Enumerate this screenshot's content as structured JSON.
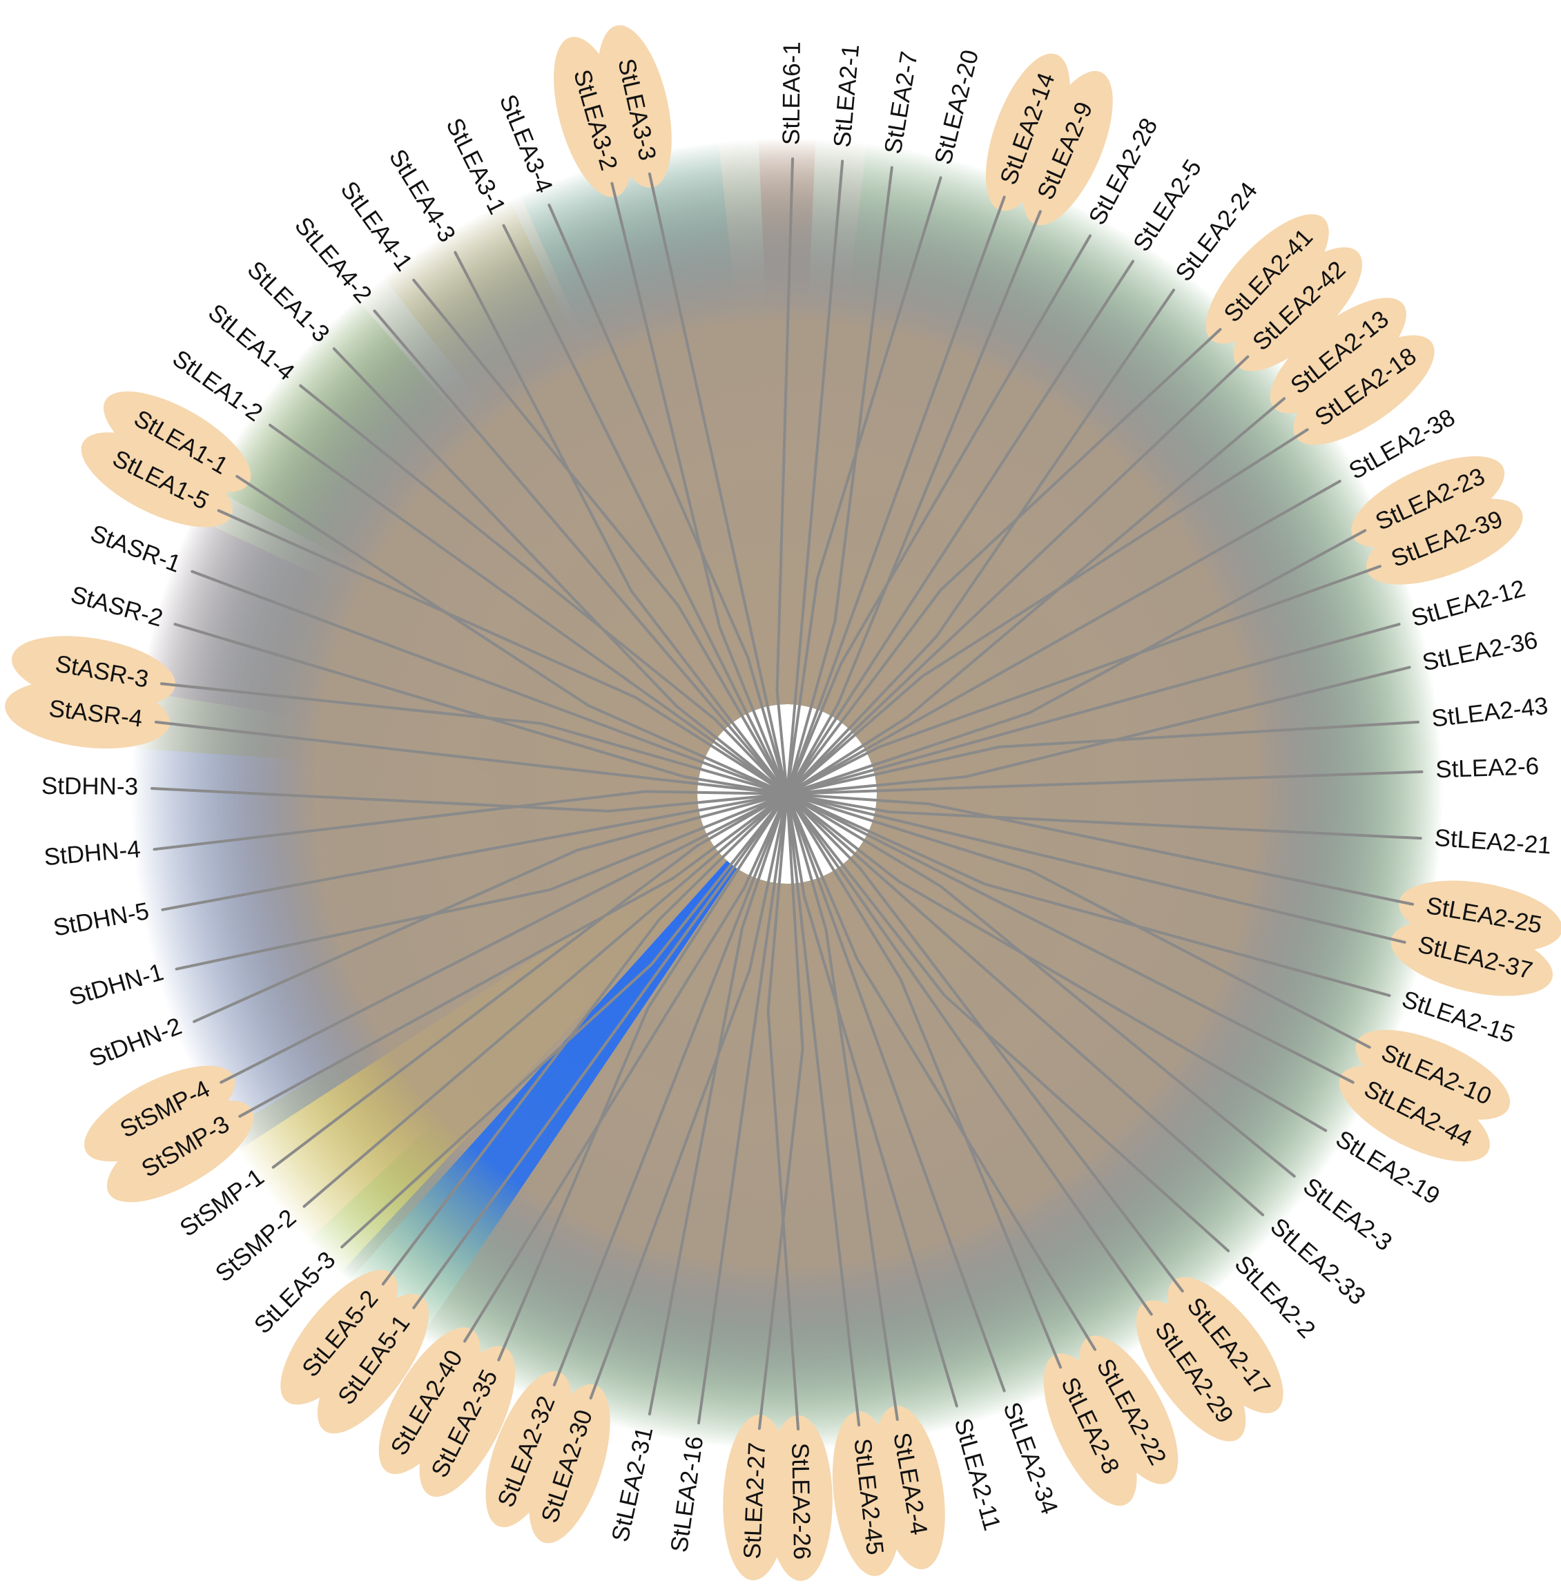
{
  "palette": {
    "branch": "#8a8a8a",
    "highlight": "#f6d7ae",
    "label": "#111111",
    "background": "#ffffff"
  },
  "groups": [
    {
      "id": "LEA2-a",
      "color": "#76f2b0",
      "from_deg": -83,
      "to_deg": 4
    },
    {
      "id": "LEA2-b",
      "color": "#76f2b0",
      "from_deg": 4,
      "to_deg": 137
    },
    {
      "id": "LEA6",
      "color": "#d81f2a",
      "from_deg": -92.5,
      "to_deg": -87.5
    },
    {
      "id": "LEA3",
      "color": "#34d3f4",
      "from_deg": -114,
      "to_deg": -96
    },
    {
      "id": "LEA4",
      "color": "#f6b53a",
      "from_deg": -128,
      "to_deg": -115
    },
    {
      "id": "LEA1",
      "color": "#4bbb14",
      "from_deg": -152,
      "to_deg": -131
    },
    {
      "id": "ASR",
      "color": "#b866f2",
      "from_deg": -171,
      "to_deg": -155
    },
    {
      "id": "DHN",
      "color": "#f4ea1a",
      "from_deg": -176,
      "to_deg": 149
    },
    {
      "id": "SMP",
      "color": "#2b6ef0",
      "from_deg": 147,
      "to_deg": 133
    },
    {
      "id": "LEA5",
      "color": "#b09d84",
      "from_deg": 132,
      "to_deg": 124
    }
  ],
  "leaves": [
    {
      "label": "StLEA6-1",
      "angle": -89.5,
      "highlight": false
    },
    {
      "label": "StLEA2-1",
      "angle": -85,
      "highlight": false
    },
    {
      "label": "StLEA2-7",
      "angle": -80.5,
      "highlight": false
    },
    {
      "label": "StLEA2-20",
      "angle": -76,
      "highlight": false
    },
    {
      "label": "StLEA2-14",
      "angle": -70,
      "highlight": true
    },
    {
      "label": "StLEA2-9",
      "angle": -66.5,
      "highlight": true
    },
    {
      "label": "StLEA2-28",
      "angle": -61.5,
      "highlight": false
    },
    {
      "label": "StLEA2-5",
      "angle": -57,
      "highlight": false
    },
    {
      "label": "StLEA2-24",
      "angle": -52.5,
      "highlight": false
    },
    {
      "label": "StLEA2-41",
      "angle": -47,
      "highlight": true
    },
    {
      "label": "StLEA2-42",
      "angle": -43.5,
      "highlight": true
    },
    {
      "label": "StLEA2-13",
      "angle": -38.5,
      "highlight": true
    },
    {
      "label": "StLEA2-18",
      "angle": -35,
      "highlight": true
    },
    {
      "label": "StLEA2-38",
      "angle": -29.5,
      "highlight": false
    },
    {
      "label": "StLEA2-23",
      "angle": -24.5,
      "highlight": true
    },
    {
      "label": "StLEA2-39",
      "angle": -21,
      "highlight": true
    },
    {
      "label": "StLEA2-12",
      "angle": -15.5,
      "highlight": false
    },
    {
      "label": "StLEA2-36",
      "angle": -11.5,
      "highlight": false
    },
    {
      "label": "StLEA2-43",
      "angle": -6.5,
      "highlight": false
    },
    {
      "label": "StLEA2-6",
      "angle": -2,
      "highlight": false
    },
    {
      "label": "StLEA2-21",
      "angle": 4,
      "highlight": false
    },
    {
      "label": "StLEA2-25",
      "angle": 10,
      "highlight": true
    },
    {
      "label": "StLEA2-37",
      "angle": 13.5,
      "highlight": true
    },
    {
      "label": "StLEA2-15",
      "angle": 18.5,
      "highlight": false
    },
    {
      "label": "StLEA2-10",
      "angle": 23.5,
      "highlight": true
    },
    {
      "label": "StLEA2-44",
      "angle": 27,
      "highlight": true
    },
    {
      "label": "StLEA2-19",
      "angle": 32,
      "highlight": false
    },
    {
      "label": "StLEA2-3",
      "angle": 37,
      "highlight": false
    },
    {
      "label": "StLEA2-33",
      "angle": 41.5,
      "highlight": false
    },
    {
      "label": "StLEA2-2",
      "angle": 46,
      "highlight": false
    },
    {
      "label": "StLEA2-17",
      "angle": 51.5,
      "highlight": true
    },
    {
      "label": "StLEA2-29",
      "angle": 55,
      "highlight": true
    },
    {
      "label": "StLEA2-22",
      "angle": 61,
      "highlight": true
    },
    {
      "label": "StLEA2-8",
      "angle": 64.5,
      "highlight": true
    },
    {
      "label": "StLEA2-34",
      "angle": 70,
      "highlight": false
    },
    {
      "label": "StLEA2-11",
      "angle": 74.5,
      "highlight": false
    },
    {
      "label": "StLEA2-4",
      "angle": 80,
      "highlight": true
    },
    {
      "label": "StLEA2-45",
      "angle": 83.5,
      "highlight": true
    },
    {
      "label": "StLEA2-26",
      "angle": 89,
      "highlight": true
    },
    {
      "label": "StLEA2-27",
      "angle": 92.5,
      "highlight": true
    },
    {
      "label": "StLEA2-16",
      "angle": 98,
      "highlight": false
    },
    {
      "label": "StLEA2-31",
      "angle": 102.5,
      "highlight": false
    },
    {
      "label": "StLEA2-30",
      "angle": 108,
      "highlight": true
    },
    {
      "label": "StLEA2-32",
      "angle": 111.5,
      "highlight": true
    },
    {
      "label": "StLEA2-35",
      "angle": 117,
      "highlight": true
    },
    {
      "label": "StLEA2-40",
      "angle": 120.5,
      "highlight": true
    },
    {
      "label": "StLEA5-1",
      "angle": 126,
      "highlight": true
    },
    {
      "label": "StLEA5-2",
      "angle": 129.5,
      "highlight": true
    },
    {
      "label": "StLEA5-3",
      "angle": 134.5,
      "highlight": false
    },
    {
      "label": "StSMP-2",
      "angle": 139.5,
      "highlight": false
    },
    {
      "label": "StSMP-1",
      "angle": 144,
      "highlight": false
    },
    {
      "label": "StSMP-3",
      "angle": 149.5,
      "highlight": true
    },
    {
      "label": "StSMP-4",
      "angle": 153,
      "highlight": true
    },
    {
      "label": "StDHN-2",
      "angle": 159,
      "highlight": false
    },
    {
      "label": "StDHN-1",
      "angle": 164,
      "highlight": false
    },
    {
      "label": "StDHN-5",
      "angle": 169.5,
      "highlight": false
    },
    {
      "label": "StDHN-4",
      "angle": 175,
      "highlight": false
    },
    {
      "label": "StDHN-3",
      "angle": -179.5,
      "highlight": false
    },
    {
      "label": "StASR-4",
      "angle": -173.5,
      "highlight": true
    },
    {
      "label": "StASR-3",
      "angle": -170,
      "highlight": true
    },
    {
      "label": "StASR-2",
      "angle": -164.5,
      "highlight": false
    },
    {
      "label": "StASR-1",
      "angle": -159.5,
      "highlight": false
    },
    {
      "label": "StLEA1-5",
      "angle": -153.5,
      "highlight": true
    },
    {
      "label": "StLEA1-1",
      "angle": -150,
      "highlight": true
    },
    {
      "label": "StLEA1-2",
      "angle": -144.5,
      "highlight": false
    },
    {
      "label": "StLEA1-4",
      "angle": -140,
      "highlight": false
    },
    {
      "label": "StLEA1-3",
      "angle": -135.5,
      "highlight": false
    },
    {
      "label": "StLEA4-2",
      "angle": -130.5,
      "highlight": false
    },
    {
      "label": "StLEA4-1",
      "angle": -126,
      "highlight": false
    },
    {
      "label": "StLEA4-3",
      "angle": -121.5,
      "highlight": false
    },
    {
      "label": "StLEA3-1",
      "angle": -116.5,
      "highlight": false
    },
    {
      "label": "StLEA3-4",
      "angle": -112,
      "highlight": false
    },
    {
      "label": "StLEA3-2",
      "angle": -106,
      "highlight": true
    },
    {
      "label": "StLEA3-3",
      "angle": -102.5,
      "highlight": true
    }
  ]
}
